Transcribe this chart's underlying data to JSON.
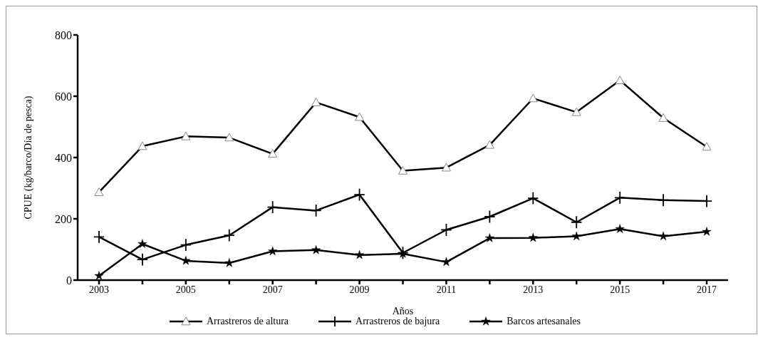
{
  "chart_data": {
    "type": "line",
    "xlabel": "Años",
    "ylabel": "CPUE  (kg/barco/Día de pesca)",
    "categories": [
      "2003",
      null,
      "2005",
      null,
      "2007",
      null,
      "2009",
      null,
      "2011",
      null,
      "2013",
      null,
      "2015",
      null,
      "2017"
    ],
    "series": [
      {
        "name": "Arrastreros de altura",
        "color": "#000000",
        "marker": "triangle",
        "values": [
          287,
          437,
          469,
          465,
          412,
          580,
          532,
          357,
          367,
          441,
          593,
          548,
          652,
          529,
          435
        ]
      },
      {
        "name": "Arrastreros de bajura",
        "color": "#000000",
        "marker": "cross",
        "values": [
          141,
          67,
          115,
          146,
          238,
          227,
          279,
          89,
          164,
          207,
          267,
          189,
          269,
          261,
          258
        ]
      },
      {
        "name": "Barcos artesanales",
        "color": "#000000",
        "marker": "star",
        "values": [
          14,
          118,
          63,
          56,
          94,
          98,
          82,
          86,
          59,
          137,
          138,
          143,
          167,
          143,
          158
        ]
      }
    ],
    "ylim": [
      0,
      800
    ],
    "yticks": [
      0,
      200,
      400,
      600,
      800
    ],
    "grid": false,
    "legend": "bottom",
    "line_style": "solid"
  }
}
